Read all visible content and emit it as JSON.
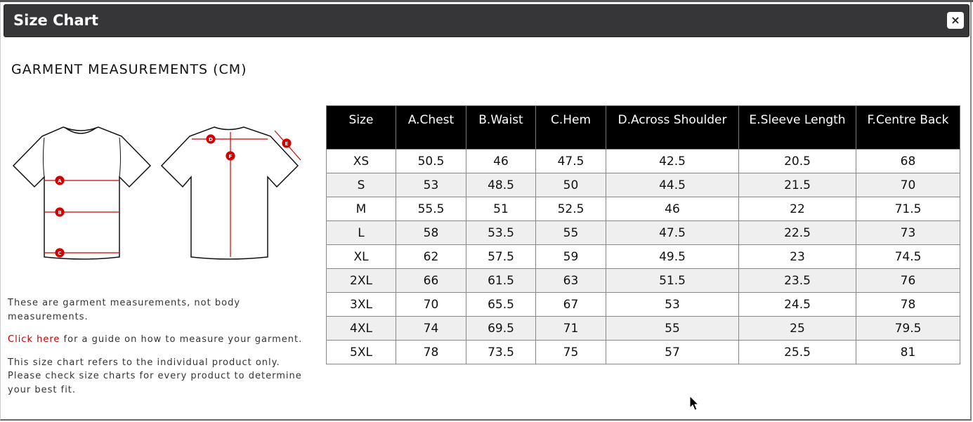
{
  "dialog": {
    "title": "Size Chart",
    "close_label": "×"
  },
  "heading": "GARMENT MEASUREMENTS (CM)",
  "diagram": {
    "markers": [
      "A",
      "B",
      "C",
      "D",
      "E",
      "F"
    ],
    "accent_color": "#d40000"
  },
  "notes": {
    "line1": "These are garment measurements, not body measurements.",
    "link": "Click here",
    "line2_rest": " for a guide on how to measure your garment.",
    "line3": "This size chart refers to the individual product only. Please check size charts for every product to determine your best fit."
  },
  "table": {
    "headers": [
      "Size",
      "A.Chest",
      "B.Waist",
      "C.Hem",
      "D.Across Shoulder",
      "E.Sleeve Length",
      "F.Centre Back"
    ],
    "rows": [
      [
        "XS",
        "50.5",
        "46",
        "47.5",
        "42.5",
        "20.5",
        "68"
      ],
      [
        "S",
        "53",
        "48.5",
        "50",
        "44.5",
        "21.5",
        "70"
      ],
      [
        "M",
        "55.5",
        "51",
        "52.5",
        "46",
        "22",
        "71.5"
      ],
      [
        "L",
        "58",
        "53.5",
        "55",
        "47.5",
        "22.5",
        "73"
      ],
      [
        "XL",
        "62",
        "57.5",
        "59",
        "49.5",
        "23",
        "74.5"
      ],
      [
        "2XL",
        "66",
        "61.5",
        "63",
        "51.5",
        "23.5",
        "76"
      ],
      [
        "3XL",
        "70",
        "65.5",
        "67",
        "53",
        "24.5",
        "78"
      ],
      [
        "4XL",
        "74",
        "69.5",
        "71",
        "55",
        "25",
        "79.5"
      ],
      [
        "5XL",
        "78",
        "73.5",
        "75",
        "57",
        "25.5",
        "81"
      ]
    ]
  }
}
